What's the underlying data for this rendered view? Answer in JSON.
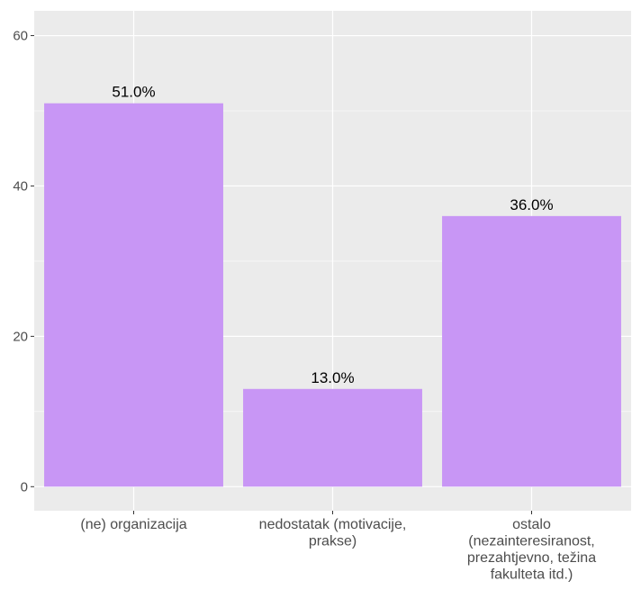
{
  "chart_data": {
    "type": "bar",
    "categories": [
      [
        "(ne) organizacija"
      ],
      [
        "nedostatak (motivacije,",
        "prakse)"
      ],
      [
        "ostalo",
        "(nezainteresiranost,",
        "prezahtjevno, težina",
        "fakulteta itd.)"
      ]
    ],
    "values": [
      51.0,
      13.0,
      36.0
    ],
    "data_labels": [
      "51.0%",
      "13.0%",
      "36.0%"
    ],
    "title": "",
    "xlabel": "",
    "ylabel": "",
    "ylim": [
      -3.2,
      63.3
    ],
    "yticks": [
      0,
      20,
      40,
      60
    ],
    "ytick_labels": [
      "0",
      "20",
      "40",
      "60"
    ],
    "grid": true,
    "colors": {
      "bar": "#c896f5",
      "panel": "#ebebeb",
      "grid": "#ffffff",
      "tick_text": "#4d4d4d"
    }
  }
}
